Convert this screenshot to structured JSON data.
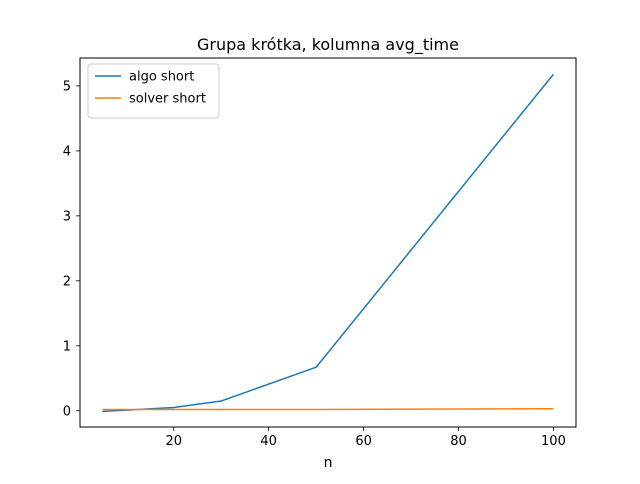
{
  "chart_data": {
    "type": "line",
    "title": "Grupa krótka, kolumna avg_time",
    "xlabel": "n",
    "ylabel": "",
    "xlim": [
      0.25,
      104.75
    ],
    "ylim": [
      -0.25,
      5.43
    ],
    "xticks": [
      20,
      40,
      60,
      80,
      100
    ],
    "yticks": [
      0,
      1,
      2,
      3,
      4,
      5
    ],
    "grid": false,
    "legend_position": "top-left",
    "series": [
      {
        "name": "algo short",
        "color": "#1f77b4",
        "x": [
          5,
          10,
          20,
          30,
          50,
          100
        ],
        "y": [
          -0.01,
          0.01,
          0.05,
          0.15,
          0.67,
          5.18
        ]
      },
      {
        "name": "solver short",
        "color": "#ff7f0e",
        "x": [
          5,
          10,
          20,
          30,
          50,
          100
        ],
        "y": [
          0.02,
          0.02,
          0.02,
          0.02,
          0.02,
          0.03
        ]
      }
    ]
  }
}
